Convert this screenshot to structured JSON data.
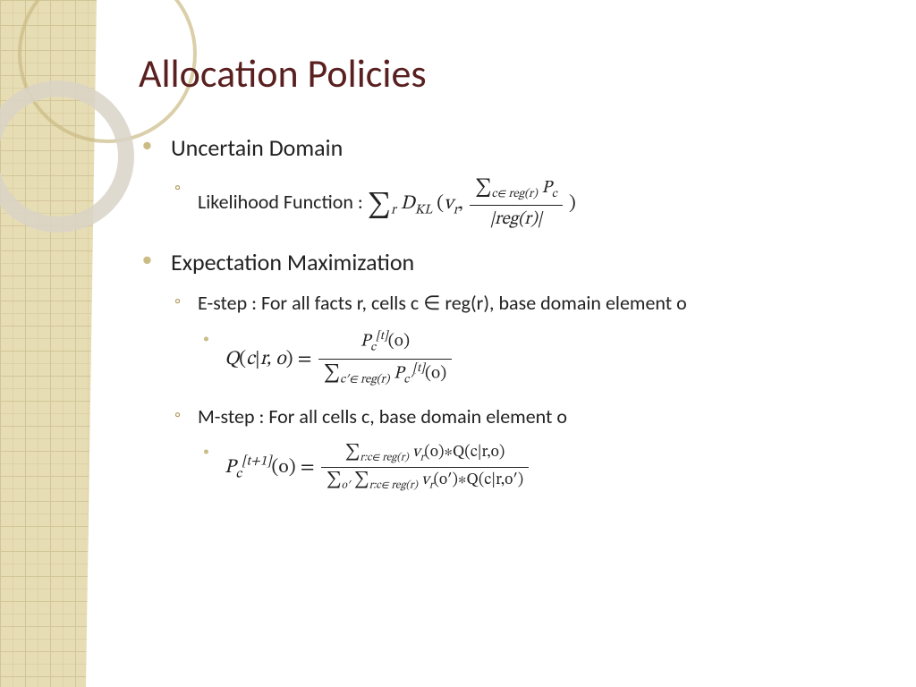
{
  "title": "Allocation Policies",
  "colors": {
    "title_color": "#5a1f1f",
    "bullet_color": "#cbbb85",
    "subbullet_color": "#b39b5b",
    "text_color": "#222222",
    "background": "#ffffff",
    "side_grid_bg": "#e3d7a8",
    "side_grid_line": "#cbbb85",
    "ring_light": "#d9d3c7"
  },
  "typography": {
    "title_fontsize": 44,
    "bullet_fontsize": 26,
    "sub_fontsize": 22,
    "font_family": "Gill Sans",
    "math_font": "Cambria Math"
  },
  "bullets": [
    {
      "label": "Uncertain Domain",
      "subs": [
        {
          "label": "Likelihood Function :  ",
          "math": {
            "prefix_sum_sub": "r",
            "func": "D",
            "func_sub": "KL",
            "arg1": "v",
            "arg1_sub": "r",
            "frac_num_sum_sub": "c∈ reg(r)",
            "frac_num_sym": "P",
            "frac_num_sym_sub": "c",
            "frac_den": "|reg(r)|"
          }
        }
      ]
    },
    {
      "label": "Expectation Maximization",
      "subs": [
        {
          "label": "E-step : For all facts r, cells c ∈ reg(r), base domain element o",
          "formula": {
            "lhs": "Q(c|r, o) =",
            "num": {
              "P_sub": "c",
              "P_sup": "[t]",
              "arg": "(o)"
            },
            "den": {
              "sum_sub": "c′∈ reg(r)",
              "P_sub": "c′",
              "P_sup": "[t]",
              "arg": "(o)"
            }
          }
        },
        {
          "label": "M-step : For all cells c, base domain element o",
          "formula": {
            "lhs_P_sub": "c",
            "lhs_P_sup": "[t+1]",
            "lhs_arg": "(o) =",
            "num": {
              "sum_sub": "r:c∈ reg(r)",
              "body": "v",
              "body_sub": "r",
              "rest": "(o)∗Q(c|r,o)"
            },
            "den": {
              "sum1_sub": "o′",
              "sum2_sub": "r:c∈ reg(r)",
              "body": "v",
              "body_sub": "r",
              "rest": "(o′)∗Q(c|r,o′)"
            }
          }
        }
      ]
    }
  ]
}
